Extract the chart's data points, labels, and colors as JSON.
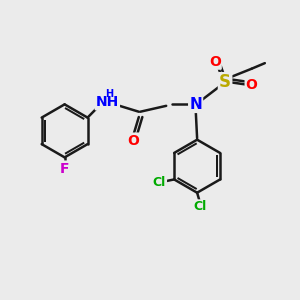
{
  "background_color": "#ebebeb",
  "bond_color": "#1a1a1a",
  "bond_width": 1.8,
  "figsize": [
    3.0,
    3.0
  ],
  "dpi": 100,
  "atom_colors": {
    "F": "#cc00cc",
    "O": "#ff0000",
    "N": "#0000ff",
    "S": "#bbaa00",
    "Cl": "#00aa00",
    "H": "#666666"
  },
  "font_sizes": {
    "F": 10,
    "O": 10,
    "N": 11,
    "S": 12,
    "Cl": 9,
    "NH": 10,
    "CH2": 9,
    "methyl": 9
  }
}
